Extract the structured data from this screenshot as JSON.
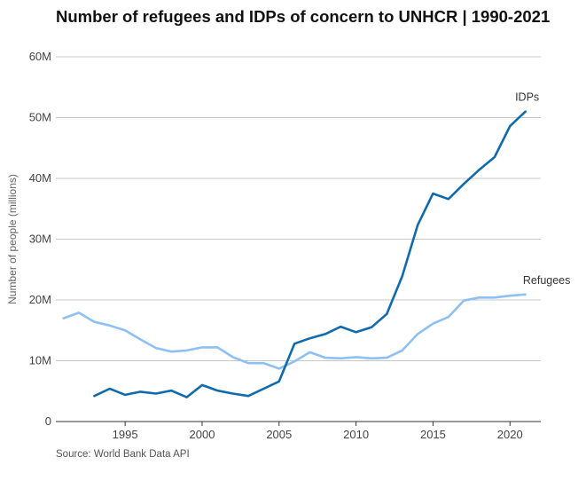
{
  "title": "Number of refugees and IDPs of concern to UNHCR | 1990-2021",
  "source": "Source: World Bank Data API",
  "chart_data": {
    "type": "line",
    "title": "Number of refugees and IDPs of concern to UNHCR | 1990-2021",
    "xlabel": "",
    "ylabel": "Number of people (millions)",
    "xlim": [
      1990.5,
      2022
    ],
    "ylim": [
      0,
      60
    ],
    "grid": true,
    "x_ticks": [
      1995,
      2000,
      2005,
      2010,
      2015,
      2020
    ],
    "y_ticks": [
      0,
      10,
      20,
      30,
      40,
      50,
      60
    ],
    "y_tick_labels": [
      "0",
      "10M",
      "20M",
      "30M",
      "40M",
      "50M",
      "60M"
    ],
    "series": [
      {
        "name": "Refugees",
        "color": "#8ec0f5",
        "x": [
          1991,
          1992,
          1993,
          1994,
          1995,
          1996,
          1997,
          1998,
          1999,
          2000,
          2001,
          2002,
          2003,
          2004,
          2005,
          2006,
          2007,
          2008,
          2009,
          2010,
          2011,
          2012,
          2013,
          2014,
          2015,
          2016,
          2017,
          2018,
          2019,
          2020,
          2021
        ],
        "values": [
          17.0,
          17.9,
          16.4,
          15.8,
          15.0,
          13.5,
          12.1,
          11.5,
          11.7,
          12.2,
          12.2,
          10.6,
          9.6,
          9.6,
          8.7,
          9.9,
          11.4,
          10.5,
          10.4,
          10.6,
          10.4,
          10.5,
          11.7,
          14.4,
          16.1,
          17.2,
          19.9,
          20.4,
          20.4,
          20.7,
          20.9
        ]
      },
      {
        "name": "IDPs",
        "color": "#0f6aae",
        "x": [
          1993,
          1994,
          1995,
          1996,
          1997,
          1998,
          1999,
          2000,
          2001,
          2002,
          2003,
          2004,
          2005,
          2006,
          2007,
          2008,
          2009,
          2010,
          2011,
          2012,
          2013,
          2014,
          2015,
          2016,
          2017,
          2018,
          2019,
          2020,
          2021
        ],
        "values": [
          4.2,
          5.4,
          4.4,
          4.9,
          4.6,
          5.1,
          4.0,
          6.0,
          5.1,
          4.6,
          4.2,
          5.4,
          6.6,
          12.8,
          13.7,
          14.4,
          15.6,
          14.7,
          15.5,
          17.7,
          23.9,
          32.3,
          37.5,
          36.6,
          39.1,
          41.4,
          43.5,
          48.6,
          51.0
        ]
      }
    ]
  }
}
